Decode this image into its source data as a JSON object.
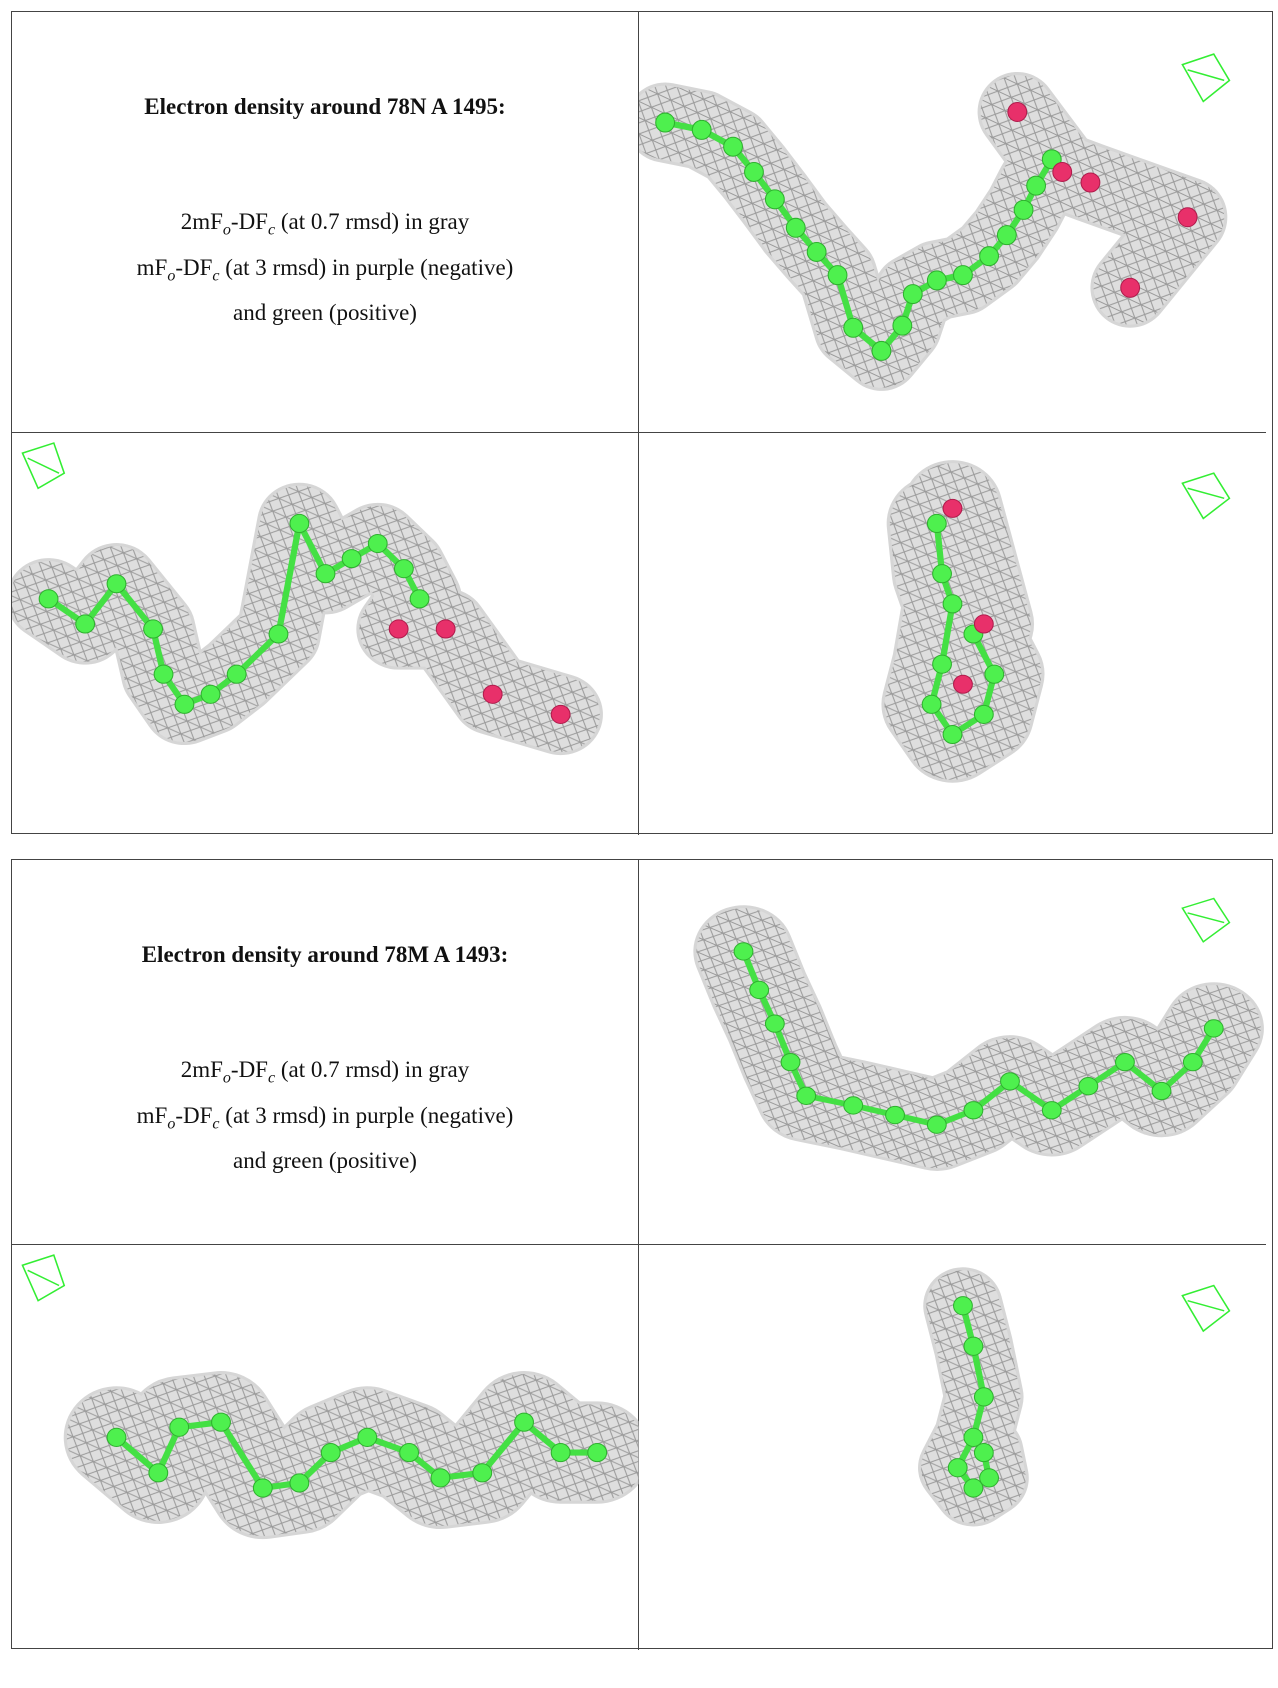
{
  "blocks": [
    {
      "title": "Electron density around 78N A 1495:",
      "lines": [
        [
          "2mF",
          "o",
          "-DF",
          "c",
          " (at 0.7 rmsd) in gray"
        ],
        [
          "mF",
          "o",
          "-DF",
          "c",
          " (at 3 rmsd) in purple (negative)"
        ],
        [
          "and green (positive)"
        ]
      ]
    },
    {
      "title": "Electron density around 78M A 1493:",
      "lines": [
        [
          "2mF",
          "o",
          "-DF",
          "c",
          " (at 0.7 rmsd) in gray"
        ],
        [
          "mF",
          "o",
          "-DF",
          "c",
          " (at 3 rmsd) in purple (negative)"
        ],
        [
          "and green (positive)"
        ]
      ]
    }
  ]
}
